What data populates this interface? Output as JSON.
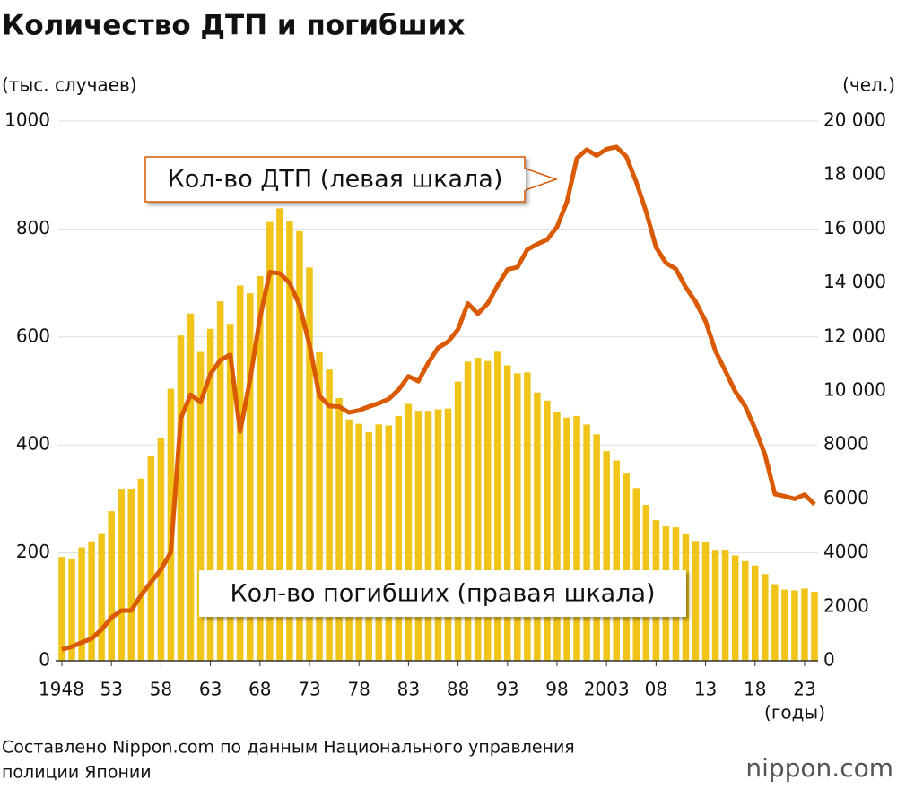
{
  "chart_data": {
    "type": "bar-line",
    "title": "Количество ДТП и погибших",
    "y_label": "(тыс. случаев)",
    "y2_label": "(чел.)",
    "x_label": "(годы)",
    "source": "Составлено Nippon.com по данным Национального управления полиции Японии",
    "logo": "nippon.com",
    "categories": [
      "1948",
      null,
      null,
      null,
      null,
      "53",
      null,
      null,
      null,
      null,
      "58",
      null,
      null,
      null,
      null,
      "63",
      null,
      null,
      null,
      null,
      "68",
      null,
      null,
      null,
      null,
      "73",
      null,
      null,
      null,
      null,
      "78",
      null,
      null,
      null,
      null,
      "83",
      null,
      null,
      null,
      null,
      "88",
      null,
      null,
      null,
      null,
      "93",
      null,
      null,
      null,
      null,
      "98",
      null,
      null,
      null,
      null,
      "2003",
      null,
      null,
      null,
      null,
      "08",
      null,
      null,
      null,
      null,
      "13",
      null,
      null,
      null,
      null,
      "18",
      null,
      null,
      null,
      null,
      "23",
      null
    ],
    "series": [
      {
        "name": "Кол-во погибших (правая шкала)",
        "kind": "bar",
        "axis": "y2",
        "color": "#f0c419",
        "values": [
          3848,
          3790,
          4202,
          4429,
          4696,
          5544,
          6374,
          6379,
          6751,
          7575,
          8248,
          10079,
          12055,
          12865,
          11445,
          12301,
          13318,
          12484,
          13904,
          13618,
          14256,
          16257,
          16765,
          16278,
          15918,
          14574,
          11432,
          10792,
          9734,
          8945,
          8783,
          8466,
          8760,
          8719,
          9073,
          9520,
          9262,
          9261,
          9317,
          9347,
          10344,
          11086,
          11227,
          11109,
          11452,
          10945,
          10653,
          10684,
          9943,
          9642,
          9214,
          9012,
          9073,
          8757,
          8396,
          7768,
          7425,
          6937,
          6403,
          5782,
          5209,
          4979,
          4948,
          4691,
          4438,
          4388,
          4113,
          4117,
          3904,
          3694,
          3532,
          3215,
          2839,
          2636,
          2610,
          2678,
          2560
        ]
      },
      {
        "name": "Кол-во ДТП (левая шкала)",
        "kind": "line",
        "axis": "y",
        "color": "#d95a00",
        "values": [
          21,
          26,
          34,
          41,
          58,
          80,
          93,
          93,
          122,
          146,
          169,
          201,
          449,
          493,
          479,
          531,
          557,
          567,
          425,
          521,
          635,
          720,
          718,
          700,
          659,
          586,
          491,
          472,
          471,
          460,
          464,
          471,
          477,
          485,
          502,
          527,
          518,
          552,
          580,
          591,
          614,
          662,
          643,
          662,
          695,
          725,
          729,
          762,
          772,
          780,
          804,
          850,
          931,
          947,
          936,
          948,
          952,
          934,
          887,
          832,
          766,
          737,
          726,
          692,
          665,
          629,
          574,
          537,
          499,
          472,
          430,
          382,
          309,
          305,
          300,
          308,
          290
        ]
      }
    ],
    "ylim": [
      0,
      1000
    ],
    "yticks": [
      0,
      200,
      400,
      600,
      800,
      1000
    ],
    "y2lim": [
      0,
      20000
    ],
    "y2ticks": [
      0,
      2000,
      4000,
      6000,
      8000,
      {
        "value": 10000,
        "label": "10 000"
      },
      {
        "value": 12000,
        "label": "12 000"
      },
      {
        "value": 14000,
        "label": "14 000"
      },
      {
        "value": 16000,
        "label": "16 000"
      },
      {
        "value": 18000,
        "label": "18 000"
      },
      {
        "value": 20000,
        "label": "20 000"
      }
    ],
    "grid": true
  }
}
